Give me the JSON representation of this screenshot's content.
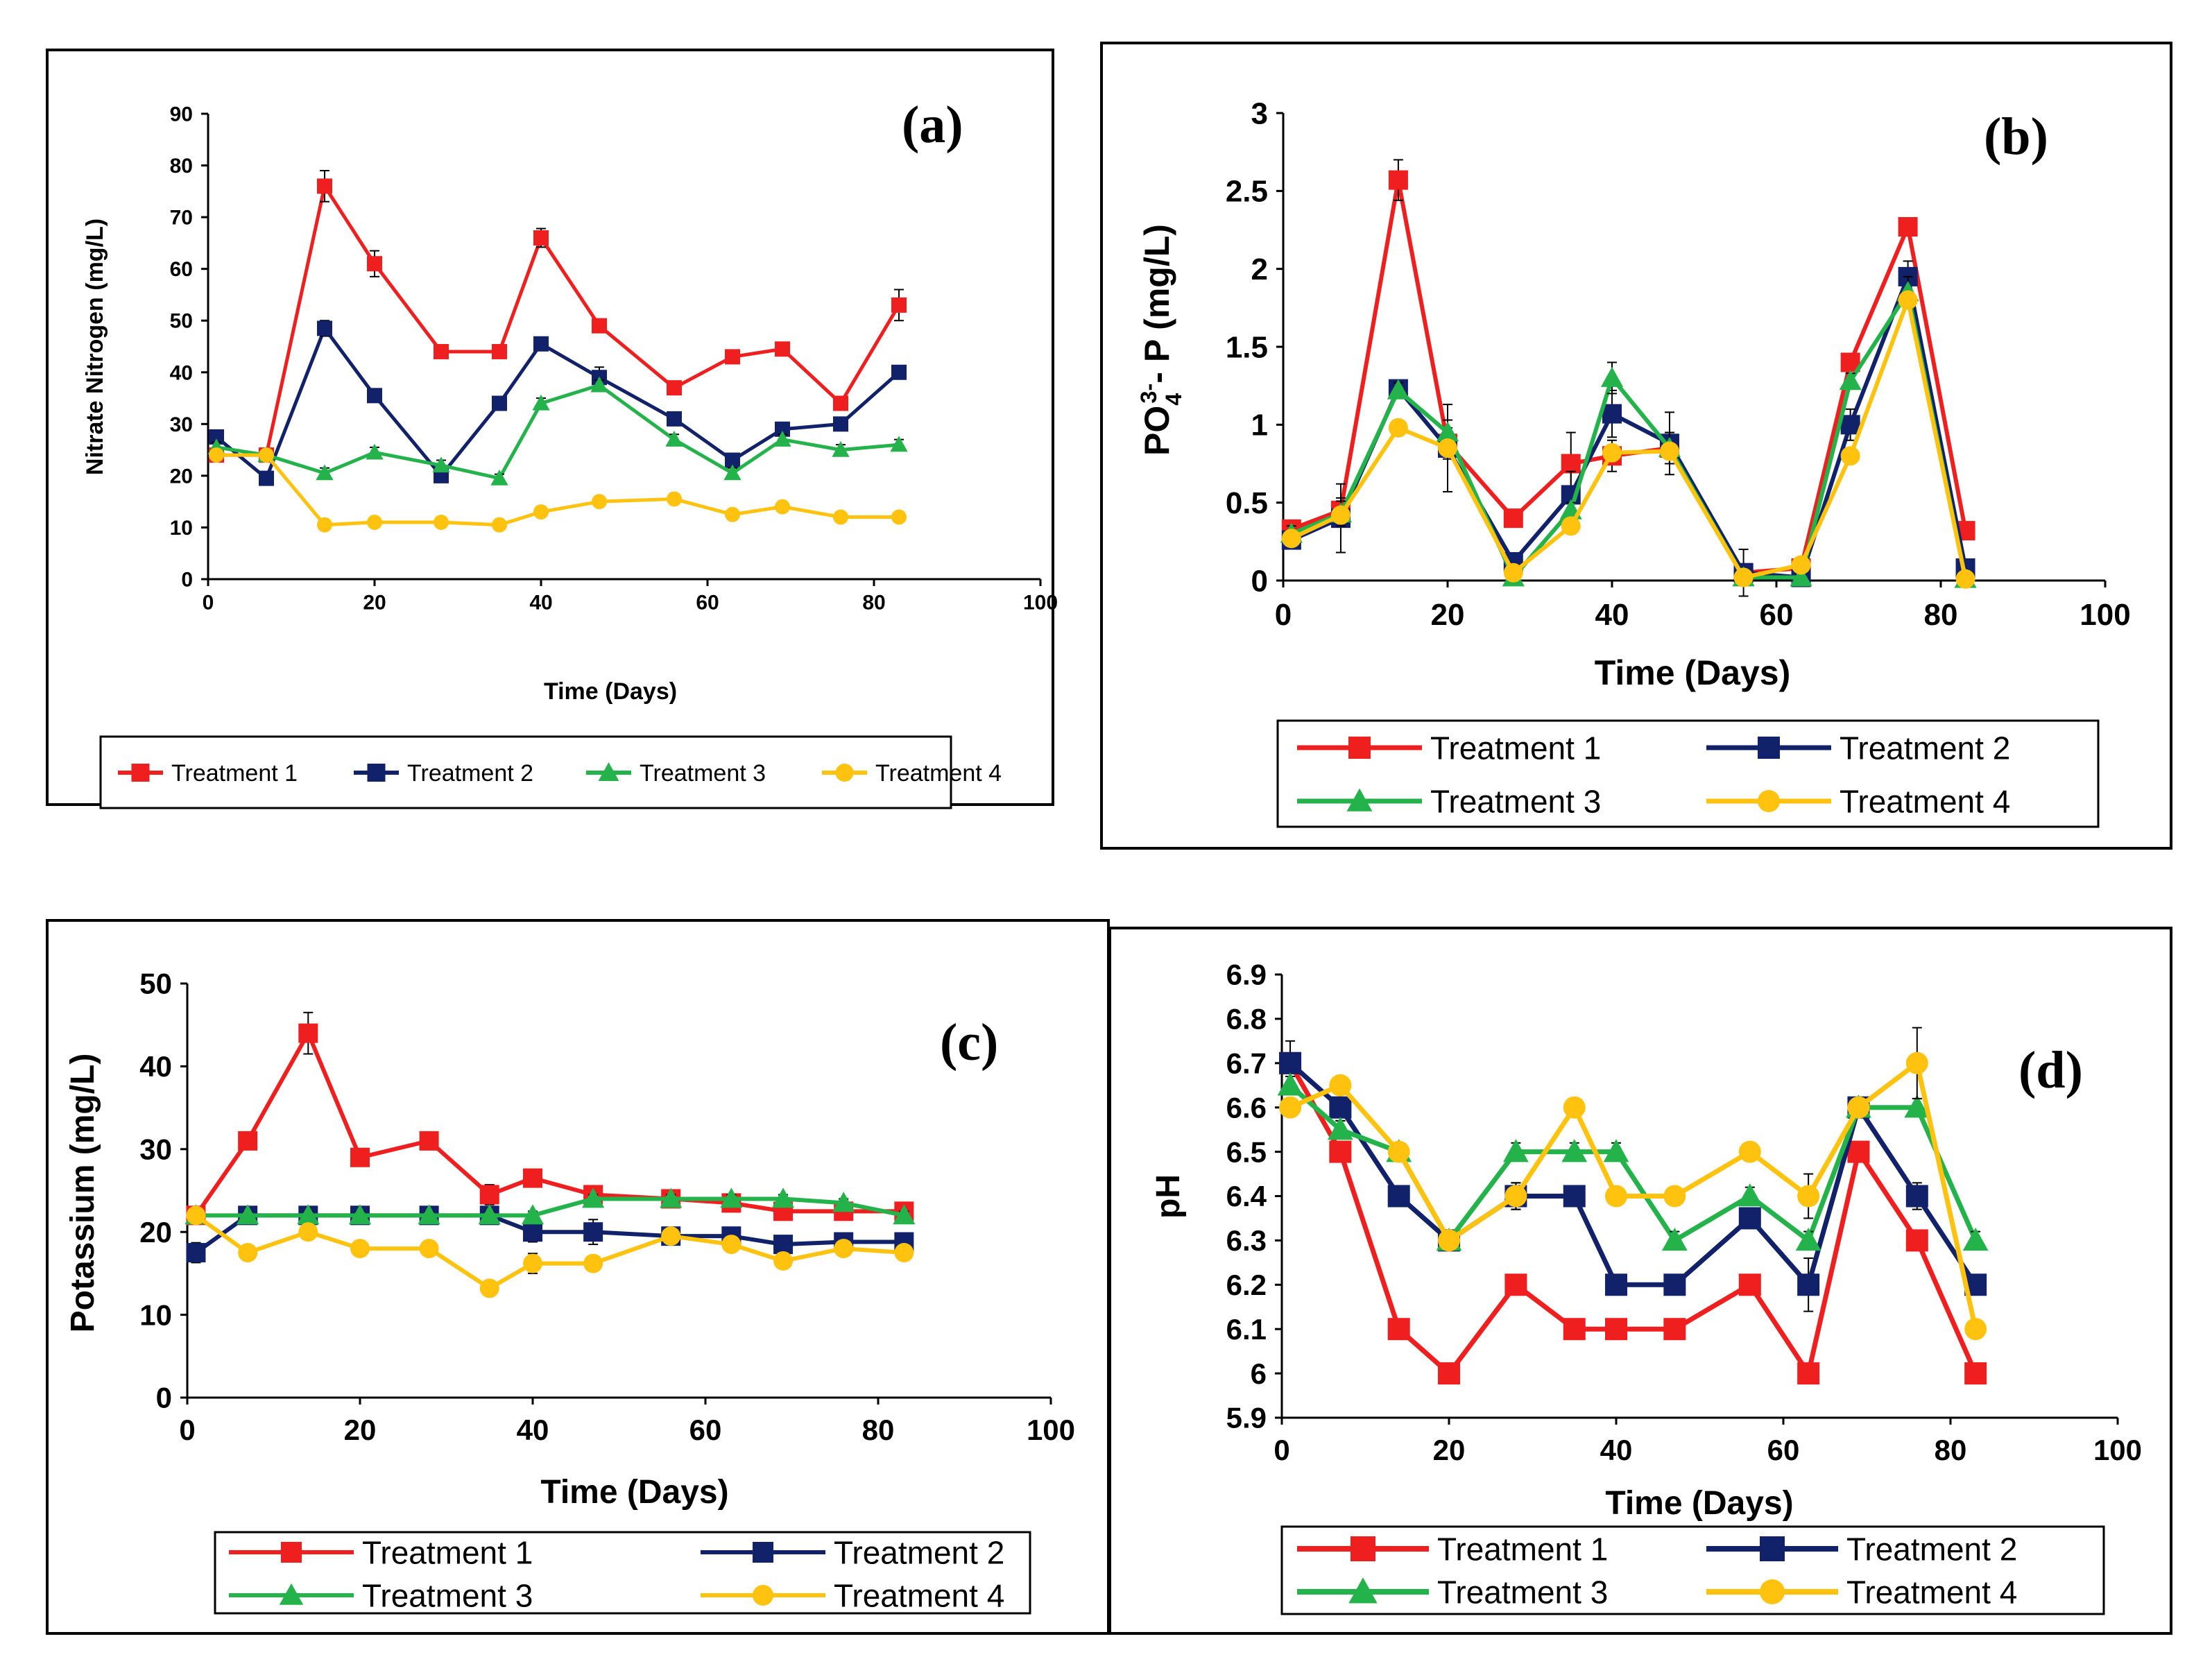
{
  "colors": {
    "t1": "#ef1f1f",
    "t2": "#12226a",
    "t3": "#23b34a",
    "t4": "#ffc20e"
  },
  "chart_data": [
    {
      "id": "a",
      "type": "line",
      "panel_label": "(a)",
      "xlabel": "Time (Days)",
      "ylabel": "Nitrate Nitrogen (mg/L)",
      "xlim": [
        0,
        100
      ],
      "ylim": [
        0,
        90
      ],
      "xticks": [
        "0",
        "20",
        "40",
        "60",
        "80",
        "100"
      ],
      "yticks": [
        "0",
        "10",
        "20",
        "30",
        "40",
        "50",
        "60",
        "70",
        "80",
        "90"
      ],
      "x": [
        1,
        7,
        14,
        20,
        28,
        35,
        40,
        47,
        56,
        63,
        69,
        76,
        83
      ],
      "series": [
        {
          "name": "Treatment 1",
          "marker": "square",
          "values": [
            24,
            24,
            76,
            61,
            44,
            44,
            66,
            49,
            37,
            43,
            44.5,
            34,
            53
          ],
          "errors": [
            0.8,
            0.8,
            3,
            2.5,
            1,
            1,
            1.8,
            1.2,
            1,
            1,
            1,
            1.2,
            3
          ]
        },
        {
          "name": "Treatment 2",
          "marker": "square",
          "values": [
            27.5,
            19.5,
            48.5,
            35.5,
            20,
            34,
            45.5,
            39,
            31,
            23,
            29,
            30,
            40
          ],
          "errors": [
            1,
            0.8,
            1.5,
            1.2,
            1,
            1,
            1,
            2,
            1,
            1,
            1,
            1,
            1
          ]
        },
        {
          "name": "Treatment 3",
          "marker": "triangle",
          "values": [
            25.5,
            24,
            20.5,
            24.5,
            22,
            19.5,
            34,
            37.5,
            27,
            20.5,
            27,
            25,
            26
          ],
          "errors": [
            1,
            0.8,
            1,
            1,
            1,
            0.8,
            1,
            1,
            1,
            1,
            1,
            1,
            1
          ]
        },
        {
          "name": "Treatment 4",
          "marker": "circle",
          "values": [
            24,
            24,
            10.5,
            11,
            11,
            10.5,
            13,
            15,
            15.5,
            12.5,
            14,
            12,
            12
          ],
          "errors": [
            0.6,
            0.6,
            0.6,
            0.6,
            0.6,
            0.6,
            0.6,
            0.6,
            0.6,
            0.6,
            0.6,
            0.6,
            0.6
          ]
        }
      ]
    },
    {
      "id": "b",
      "type": "line",
      "panel_label": "(b)",
      "xlabel": "Time (Days)",
      "ylabel_main": "PO",
      "ylabel_sub": "4",
      "ylabel_sup": "3-",
      "ylabel_rest": "- P (mg/L)",
      "xlim": [
        0,
        100
      ],
      "ylim": [
        0,
        3
      ],
      "xticks": [
        "0",
        "20",
        "40",
        "60",
        "80",
        "100"
      ],
      "yticks": [
        "0",
        "0.5",
        "1",
        "1.5",
        "2",
        "2.5",
        "3"
      ],
      "x": [
        1,
        7,
        14,
        20,
        28,
        35,
        40,
        47,
        56,
        63,
        69,
        76,
        83
      ],
      "series": [
        {
          "name": "Treatment 1",
          "marker": "square",
          "values": [
            0.33,
            0.45,
            2.57,
            0.88,
            0.4,
            0.75,
            0.8,
            0.85,
            0.05,
            0.08,
            1.4,
            2.27,
            0.32
          ],
          "errors": [
            0.05,
            0.08,
            0.13,
            0.1,
            0.03,
            0.2,
            0.1,
            0.1,
            0.05,
            0.03,
            0.05,
            0.05,
            0.04
          ]
        },
        {
          "name": "Treatment 2",
          "marker": "square",
          "values": [
            0.26,
            0.4,
            1.23,
            0.85,
            0.12,
            0.55,
            1.07,
            0.88,
            0.05,
            0.02,
            1.0,
            1.95,
            0.08
          ],
          "errors": [
            0.05,
            0.22,
            0.05,
            0.28,
            0.05,
            0.15,
            0.15,
            0.2,
            0.15,
            0.03,
            0.1,
            0.1,
            0.03
          ]
        },
        {
          "name": "Treatment 3",
          "marker": "triangle",
          "values": [
            0.3,
            0.43,
            1.22,
            0.95,
            0.02,
            0.45,
            1.3,
            0.85,
            0.02,
            0.02,
            1.28,
            1.85,
            0.01
          ],
          "errors": [
            0.05,
            0.08,
            0.05,
            0.08,
            0.02,
            0.05,
            0.1,
            0.1,
            0.02,
            0.02,
            0.05,
            0.1,
            0.01
          ]
        },
        {
          "name": "Treatment 4",
          "marker": "circle",
          "values": [
            0.27,
            0.42,
            0.98,
            0.85,
            0.05,
            0.35,
            0.82,
            0.83,
            0.02,
            0.1,
            0.8,
            1.8,
            0.01
          ],
          "errors": [
            0.03,
            0.05,
            0.03,
            0.05,
            0.02,
            0.05,
            0.05,
            0.05,
            0.02,
            0.02,
            0.05,
            0.05,
            0.01
          ]
        }
      ]
    },
    {
      "id": "c",
      "type": "line",
      "panel_label": "(c)",
      "xlabel": "Time (Days)",
      "ylabel": "Potassium  (mg/L)",
      "xlim": [
        0,
        100
      ],
      "ylim": [
        0,
        50
      ],
      "xticks": [
        "0",
        "20",
        "40",
        "60",
        "80",
        "100"
      ],
      "yticks": [
        "0",
        "10",
        "20",
        "30",
        "40",
        "50"
      ],
      "x": [
        1,
        7,
        14,
        20,
        28,
        35,
        40,
        47,
        56,
        63,
        69,
        76,
        83
      ],
      "series": [
        {
          "name": "Treatment 1",
          "marker": "square",
          "values": [
            22,
            31,
            44,
            29,
            31,
            24.5,
            26.5,
            24.5,
            24,
            23.5,
            22.5,
            22.5,
            22.5
          ],
          "errors": [
            0.5,
            0.8,
            2.5,
            0.8,
            0.8,
            1.2,
            0.8,
            1,
            0.8,
            0.8,
            0.8,
            0.8,
            0.8
          ]
        },
        {
          "name": "Treatment 2",
          "marker": "square",
          "values": [
            17.5,
            22,
            22,
            22,
            22,
            22,
            20,
            20,
            19.5,
            19.5,
            18.5,
            18.8,
            18.8
          ],
          "errors": [
            1.2,
            0.8,
            0.8,
            0.8,
            0.8,
            0.8,
            1.2,
            1.5,
            0.8,
            1,
            1,
            0.8,
            0.8
          ]
        },
        {
          "name": "Treatment 3",
          "marker": "triangle",
          "values": [
            22,
            22,
            22,
            22,
            22,
            22,
            22,
            24,
            24,
            24,
            24,
            23.5,
            22
          ],
          "errors": [
            0.5,
            0.5,
            0.5,
            0.5,
            0.5,
            0.5,
            0.5,
            0.5,
            0.5,
            0.5,
            0.5,
            0.5,
            0.5
          ]
        },
        {
          "name": "Treatment 4",
          "marker": "circle",
          "values": [
            22,
            17.5,
            20,
            18,
            18,
            13.2,
            16.2,
            16.2,
            19.5,
            18.5,
            16.5,
            18,
            17.5
          ],
          "errors": [
            0.5,
            0.5,
            0.8,
            0.5,
            0.5,
            0.8,
            1.2,
            0.8,
            0.5,
            0.8,
            0.8,
            0.5,
            0.5
          ]
        }
      ]
    },
    {
      "id": "d",
      "type": "line",
      "panel_label": "(d)",
      "xlabel": "Time (Days)",
      "ylabel": "pH",
      "xlim": [
        0,
        100
      ],
      "ylim": [
        5.9,
        6.9
      ],
      "xticks": [
        "0",
        "20",
        "40",
        "60",
        "80",
        "100"
      ],
      "yticks": [
        "5.9",
        "6",
        "6.1",
        "6.2",
        "6.3",
        "6.4",
        "6.5",
        "6.6",
        "6.7",
        "6.8",
        "6.9"
      ],
      "x": [
        1,
        7,
        14,
        20,
        28,
        35,
        40,
        47,
        56,
        63,
        69,
        76,
        83
      ],
      "series": [
        {
          "name": "Treatment 1",
          "marker": "square",
          "values": [
            6.7,
            6.5,
            6.1,
            6.0,
            6.2,
            6.1,
            6.1,
            6.1,
            6.2,
            6.0,
            6.5,
            6.3,
            6.0
          ],
          "errors": [
            0.02,
            0.02,
            0.01,
            0.01,
            0.01,
            0.01,
            0.01,
            0.01,
            0.01,
            0.01,
            0.01,
            0.02,
            0.01
          ]
        },
        {
          "name": "Treatment 2",
          "marker": "square",
          "values": [
            6.7,
            6.6,
            6.4,
            6.3,
            6.4,
            6.4,
            6.2,
            6.2,
            6.35,
            6.2,
            6.6,
            6.4,
            6.2
          ],
          "errors": [
            0.05,
            0.03,
            0.02,
            0.01,
            0.03,
            0.02,
            0.01,
            0.01,
            0.02,
            0.06,
            0.02,
            0.03,
            0.01
          ]
        },
        {
          "name": "Treatment 3",
          "marker": "triangle",
          "values": [
            6.65,
            6.55,
            6.5,
            6.3,
            6.5,
            6.5,
            6.5,
            6.3,
            6.4,
            6.3,
            6.6,
            6.6,
            6.3
          ],
          "errors": [
            0.02,
            0.02,
            0.02,
            0.01,
            0.02,
            0.02,
            0.02,
            0.02,
            0.02,
            0.02,
            0.02,
            0.02,
            0.02
          ]
        },
        {
          "name": "Treatment 4",
          "marker": "circle",
          "values": [
            6.6,
            6.65,
            6.5,
            6.3,
            6.4,
            6.6,
            6.4,
            6.4,
            6.5,
            6.4,
            6.6,
            6.7,
            6.1
          ],
          "errors": [
            0.02,
            0.02,
            0.02,
            0.01,
            0.03,
            0.02,
            0.02,
            0.02,
            0.02,
            0.05,
            0.02,
            0.08,
            0.01
          ]
        }
      ]
    }
  ]
}
